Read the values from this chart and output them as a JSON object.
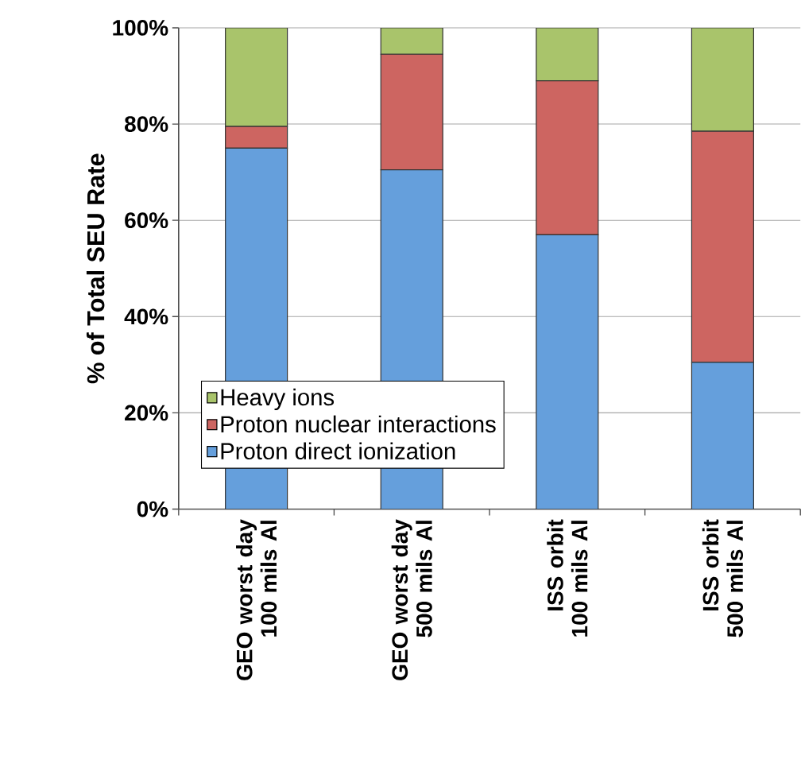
{
  "chart_data": {
    "type": "bar",
    "stacked": true,
    "ylabel": "% of Total SEU Rate",
    "categories": [
      "GEO worst day 100 mils Al",
      "GEO worst day 500 mils Al",
      "ISS orbit 100 mils Al",
      "ISS orbit 500 mils Al"
    ],
    "series": [
      {
        "name": "Proton direct ionization",
        "color": "#659fdc",
        "values": [
          75,
          70.5,
          57,
          30.5
        ]
      },
      {
        "name": "Proton nuclear interactions",
        "color": "#cd6561",
        "values": [
          4.5,
          24,
          32,
          48
        ]
      },
      {
        "name": "Heavy ions",
        "color": "#a9c46b",
        "values": [
          20.5,
          5.5,
          11,
          21.5
        ]
      }
    ],
    "ylim": [
      0,
      100
    ],
    "yticks": [
      {
        "value": 0,
        "label": "0%"
      },
      {
        "value": 20,
        "label": "20%"
      },
      {
        "value": 40,
        "label": "40%"
      },
      {
        "value": 60,
        "label": "60%"
      },
      {
        "value": 80,
        "label": "80%"
      },
      {
        "value": 100,
        "label": "100%"
      }
    ],
    "grid": "y",
    "legend": "bottom left"
  }
}
